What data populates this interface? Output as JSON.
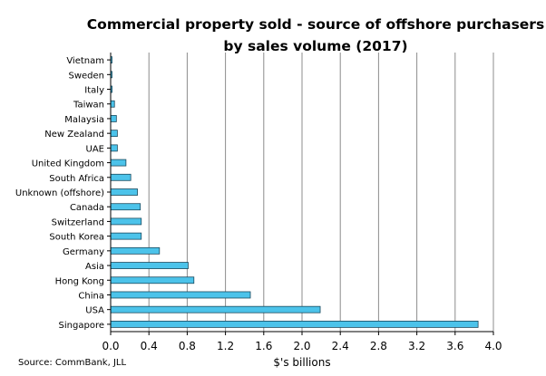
{
  "chart_data": {
    "type": "bar",
    "orientation": "horizontal",
    "title": "Commercial property sold - source of offshore purchasers",
    "subtitle": "by sales volume (2017)",
    "xlabel": "$'s billions",
    "ylabel": "",
    "source": "Source: CommBank, JLL",
    "xlim": [
      0,
      4.0
    ],
    "xticks": [
      "0.0",
      "0.4",
      "0.8",
      "1.2",
      "1.6",
      "2.0",
      "2.4",
      "2.8",
      "3.2",
      "3.6",
      "4.0"
    ],
    "grid": "vertical",
    "bar_color": "#4cc3ea",
    "bar_edge_color": "#1a4a5e",
    "categories": [
      "Vietnam",
      "Sweden",
      "Italy",
      "Taiwan",
      "Malaysia",
      "New Zealand",
      "UAE",
      "United Kingdom",
      "South Africa",
      "Unknown (offshore)",
      "Canada",
      "Switzerland",
      "South Korea",
      "Germany",
      "Asia",
      "Hong Kong",
      "China",
      "USA",
      "Singapore"
    ],
    "values": [
      0.005,
      0.008,
      0.015,
      0.04,
      0.06,
      0.07,
      0.07,
      0.16,
      0.21,
      0.28,
      0.31,
      0.32,
      0.32,
      0.51,
      0.81,
      0.87,
      1.46,
      2.19,
      3.84
    ]
  }
}
